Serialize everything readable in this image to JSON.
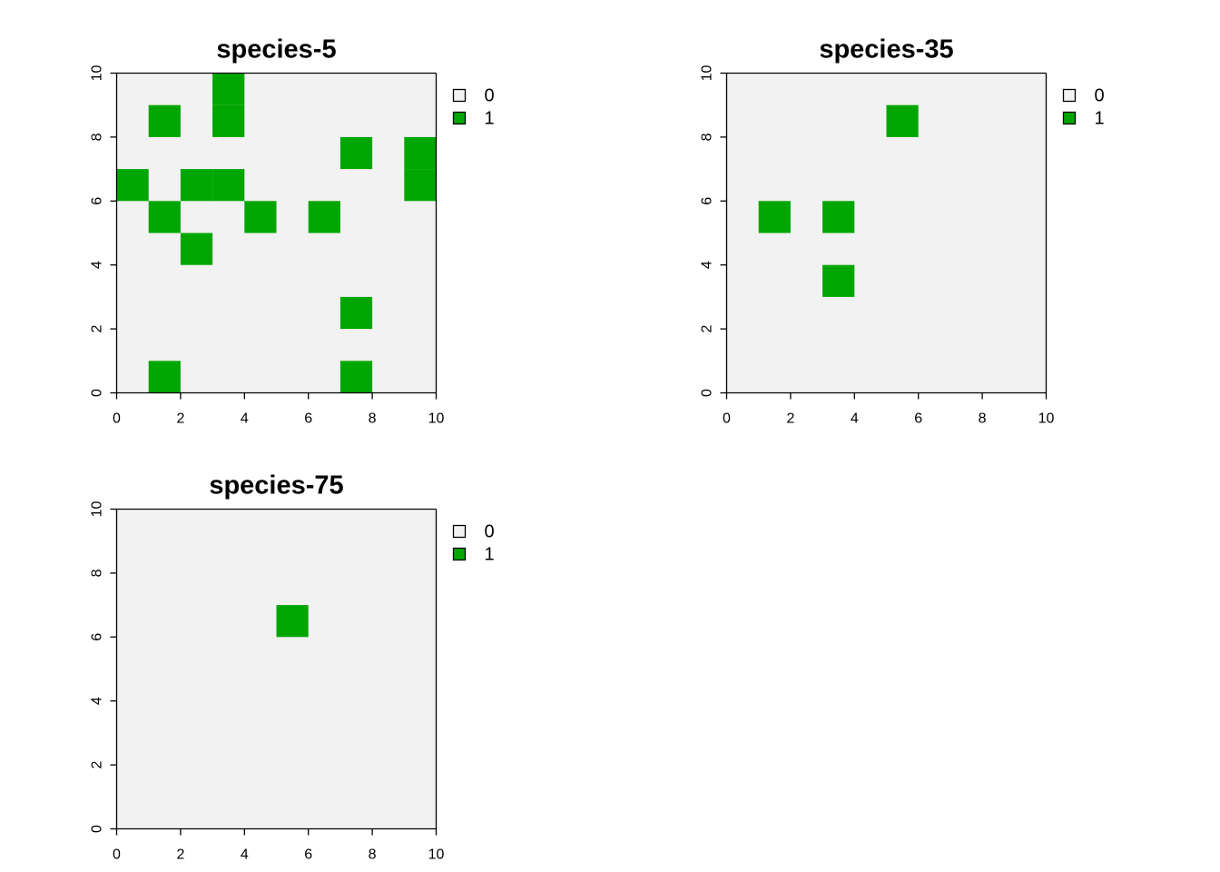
{
  "chart_data": [
    {
      "type": "heatmap",
      "title": "species-5",
      "xlim": [
        0,
        10
      ],
      "ylim": [
        0,
        10
      ],
      "x_ticks": [
        "0",
        "2",
        "4",
        "6",
        "8",
        "10"
      ],
      "y_ticks": [
        "0",
        "2",
        "4",
        "6",
        "8",
        "10"
      ],
      "cell_size": 1,
      "grid": false,
      "legend": {
        "placement": "right",
        "entries": [
          {
            "label": "0",
            "color": "#f2f2f2"
          },
          {
            "label": "1",
            "color": "#00a600"
          }
        ]
      },
      "presence_cells": [
        {
          "x": 3,
          "y": 9
        },
        {
          "x": 1,
          "y": 8
        },
        {
          "x": 3,
          "y": 8
        },
        {
          "x": 7,
          "y": 7
        },
        {
          "x": 9,
          "y": 7
        },
        {
          "x": 0,
          "y": 6
        },
        {
          "x": 2,
          "y": 6
        },
        {
          "x": 3,
          "y": 6
        },
        {
          "x": 9,
          "y": 6
        },
        {
          "x": 1,
          "y": 5
        },
        {
          "x": 4,
          "y": 5
        },
        {
          "x": 6,
          "y": 5
        },
        {
          "x": 2,
          "y": 4
        },
        {
          "x": 7,
          "y": 2
        },
        {
          "x": 1,
          "y": 0
        },
        {
          "x": 7,
          "y": 0
        }
      ]
    },
    {
      "type": "heatmap",
      "title": "species-35",
      "xlim": [
        0,
        10
      ],
      "ylim": [
        0,
        10
      ],
      "x_ticks": [
        "0",
        "2",
        "4",
        "6",
        "8",
        "10"
      ],
      "y_ticks": [
        "0",
        "2",
        "4",
        "6",
        "8",
        "10"
      ],
      "cell_size": 1,
      "grid": false,
      "legend": {
        "placement": "right",
        "entries": [
          {
            "label": "0",
            "color": "#f2f2f2"
          },
          {
            "label": "1",
            "color": "#00a600"
          }
        ]
      },
      "presence_cells": [
        {
          "x": 5,
          "y": 8
        },
        {
          "x": 1,
          "y": 5
        },
        {
          "x": 3,
          "y": 5
        },
        {
          "x": 3,
          "y": 3
        }
      ]
    },
    {
      "type": "heatmap",
      "title": "species-75",
      "xlim": [
        0,
        10
      ],
      "ylim": [
        0,
        10
      ],
      "x_ticks": [
        "0",
        "2",
        "4",
        "6",
        "8",
        "10"
      ],
      "y_ticks": [
        "0",
        "2",
        "4",
        "6",
        "8",
        "10"
      ],
      "cell_size": 1,
      "grid": false,
      "legend": {
        "placement": "right",
        "entries": [
          {
            "label": "0",
            "color": "#f2f2f2"
          },
          {
            "label": "1",
            "color": "#00a600"
          }
        ]
      },
      "presence_cells": [
        {
          "x": 5,
          "y": 6
        }
      ]
    }
  ]
}
